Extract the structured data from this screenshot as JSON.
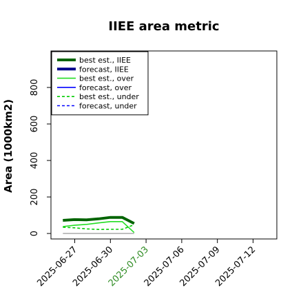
{
  "chart_data": {
    "type": "line",
    "title": "IIEE area metric",
    "xlabel": "",
    "ylabel": "Area (1000km2)",
    "x_ticks": [
      "2025-06-27",
      "2025-06-30",
      "2025-07-03",
      "2025-07-06",
      "2025-07-09",
      "2025-07-12"
    ],
    "highlight_tick": "2025-07-03",
    "highlight_color": "#2e8b22",
    "y_ticks": [
      0,
      200,
      400,
      600,
      800
    ],
    "xlim": [
      "2025-06-25",
      "2025-07-14"
    ],
    "ylim": [
      -30,
      1000
    ],
    "grid": false,
    "legend_position": "top-left",
    "series": [
      {
        "name": "best est., IIEE",
        "color": "#006400",
        "dash": "solid",
        "width": 4,
        "x": [
          "2025-06-26",
          "2025-06-27",
          "2025-06-28",
          "2025-06-29",
          "2025-06-30",
          "2025-07-01",
          "2025-07-02"
        ],
        "values": [
          72,
          76,
          75,
          80,
          88,
          88,
          55
        ]
      },
      {
        "name": "forecast, IIEE",
        "color": "#00008b",
        "dash": "solid",
        "width": 4,
        "x": [],
        "values": []
      },
      {
        "name": "best est., over",
        "color": "#22dd22",
        "dash": "solid",
        "width": 1.6,
        "x": [
          "2025-06-26",
          "2025-06-27",
          "2025-06-28",
          "2025-06-29",
          "2025-06-30",
          "2025-07-01",
          "2025-07-02"
        ],
        "values": [
          38,
          45,
          50,
          58,
          65,
          65,
          5
        ]
      },
      {
        "name": "forecast, over",
        "color": "#0000ff",
        "dash": "solid",
        "width": 1.6,
        "x": [],
        "values": []
      },
      {
        "name": "best est., under",
        "color": "#00cc00",
        "dash": "dashed",
        "width": 1.6,
        "x": [
          "2025-06-26",
          "2025-06-27",
          "2025-06-28",
          "2025-06-29",
          "2025-06-30",
          "2025-07-01",
          "2025-07-02"
        ],
        "values": [
          34,
          31,
          25,
          22,
          23,
          23,
          48
        ]
      },
      {
        "name": "forecast, under",
        "color": "#0000ff",
        "dash": "dashed",
        "width": 1.6,
        "x": [],
        "values": []
      },
      {
        "name": "",
        "color": "#999999",
        "dash": "solid",
        "width": 1.3,
        "x": [
          "2025-06-26",
          "2025-07-02"
        ],
        "values": [
          0,
          0
        ]
      }
    ]
  }
}
